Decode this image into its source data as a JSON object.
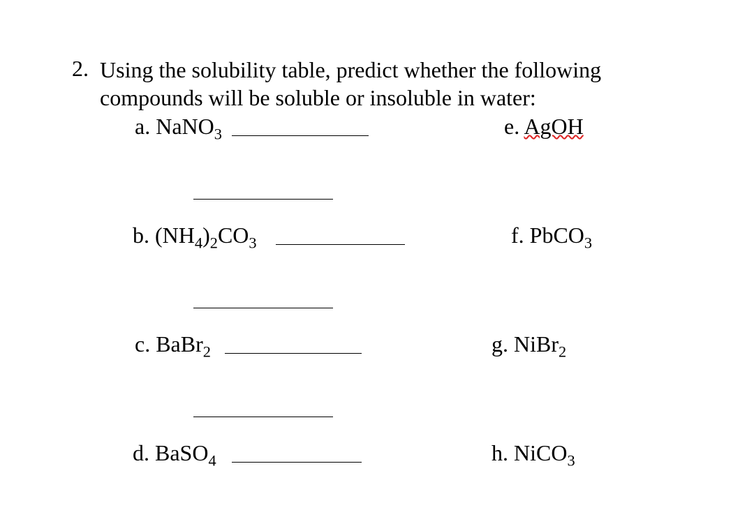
{
  "question": {
    "number": "2.",
    "line1": "Using the solubility table, predict whether the following",
    "line2": "compounds will be soluble or insoluble in water:"
  },
  "items": {
    "a": {
      "letter": "a.",
      "formula_html": "NaNO<span class='sub'>3</span>"
    },
    "b": {
      "letter": "b.",
      "formula_html": "(NH<span class='sub'>4</span>)<span class='sub'>2</span>CO<span class='sub'>3</span>"
    },
    "c": {
      "letter": "c.",
      "formula_html": "BaBr<span class='sub'>2</span>"
    },
    "d": {
      "letter": "d.",
      "formula_html": "BaSO<span class='sub'>4</span>"
    },
    "e": {
      "letter": "e.",
      "formula_html": "<span class='squiggle'>AgOH</span>"
    },
    "f": {
      "letter": "f.",
      "formula_html": "PbCO<span class='sub'>3</span>"
    },
    "g": {
      "letter": "g.",
      "formula_html": " NiBr<span class='sub'>2</span>"
    },
    "h": {
      "letter": "h.",
      "formula_html": " NiCO<span class='sub'>3</span>"
    }
  },
  "layout": {
    "font_size_pt": 24,
    "text_color": "#000000",
    "background_color": "#ffffff",
    "squiggle_color": "#d22",
    "blank_width_short": 196,
    "blank_width_mid": 200
  }
}
